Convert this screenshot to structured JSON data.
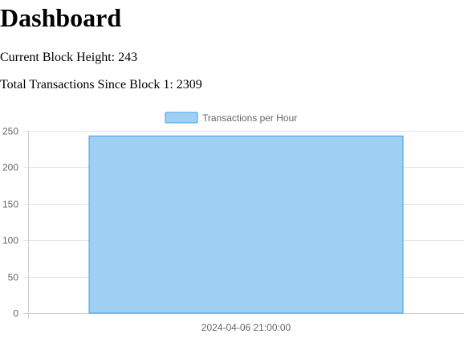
{
  "page": {
    "title": "Dashboard",
    "block_height_label": "Current Block Height: 243",
    "total_transactions_label": "Total Transactions Since Block 1: 2309"
  },
  "colors": {
    "bar_fill": "#9fd0f3",
    "bar_border": "#36a2eb",
    "grid": "#e5e5e5",
    "axis": "#d0d0d0",
    "tick_text": "#666666"
  },
  "chart_data": {
    "type": "bar",
    "categories": [
      "2024-04-06 21:00:00"
    ],
    "series": [
      {
        "name": "Transactions per Hour",
        "values": [
          243
        ]
      }
    ],
    "ylim": [
      0,
      250
    ],
    "yticks": [
      0,
      50,
      100,
      150,
      200,
      250
    ],
    "grid": true,
    "legend": "top-center",
    "title": "",
    "xlabel": "",
    "ylabel": ""
  }
}
